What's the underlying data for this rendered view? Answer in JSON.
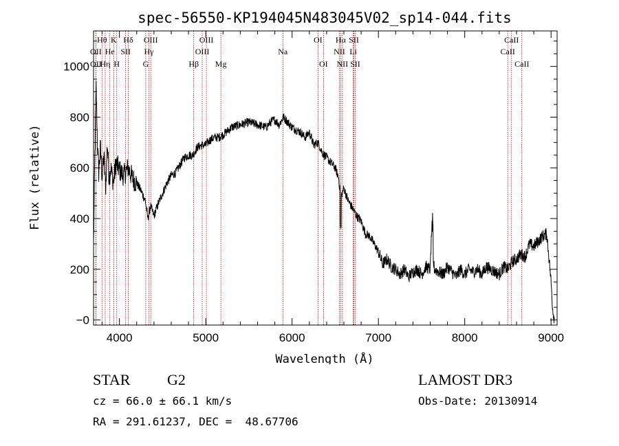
{
  "chart_data": {
    "type": "line",
    "title": "spec-56550-KP194045N483045V02_sp14-044.fits",
    "xlabel": "Wavelength (Å)",
    "ylabel": "Flux (relative)",
    "xlim": [
      3700,
      9070
    ],
    "ylim": [
      -20,
      1140
    ],
    "x_ticks": [
      4000,
      5000,
      6000,
      7000,
      8000,
      9000
    ],
    "y_ticks": [
      0,
      200,
      400,
      600,
      800,
      1000
    ],
    "y_tick_labels": [
      "−0",
      "200",
      "400",
      "600",
      "800",
      "1000"
    ],
    "series": [
      {
        "x": [
          3700,
          3715,
          3730,
          3745,
          3760,
          3780,
          3800,
          3820,
          3840,
          3860,
          3880,
          3900,
          3930,
          3960,
          4000,
          4050,
          4100,
          4150,
          4200,
          4250,
          4300,
          4330,
          4360,
          4400,
          4450,
          4500,
          4550,
          4600,
          4650,
          4700,
          4750,
          4800,
          4850,
          4900,
          4950,
          5000,
          5050,
          5100,
          5150,
          5200,
          5300,
          5400,
          5500,
          5600,
          5700,
          5750,
          5800,
          5850,
          5900,
          5950,
          6000,
          6050,
          6100,
          6150,
          6200,
          6250,
          6300,
          6350,
          6400,
          6450,
          6500,
          6540,
          6563,
          6580,
          6600,
          6650,
          6700,
          6750,
          6800,
          6850,
          6900,
          6950,
          7000,
          7050,
          7100,
          7150,
          7200,
          7250,
          7300,
          7350,
          7400,
          7450,
          7500,
          7550,
          7600,
          7620,
          7630,
          7640,
          7650,
          7700,
          7750,
          7800,
          7850,
          7900,
          7950,
          8000,
          8050,
          8100,
          8150,
          8200,
          8250,
          8300,
          8350,
          8400,
          8450,
          8500,
          8550,
          8600,
          8650,
          8700,
          8750,
          8800,
          8850,
          8900,
          8950,
          8980,
          9000,
          9020,
          9040
        ],
        "y": [
          300,
          650,
          920,
          700,
          580,
          680,
          560,
          650,
          520,
          700,
          560,
          600,
          540,
          620,
          590,
          570,
          600,
          560,
          540,
          510,
          470,
          400,
          450,
          410,
          460,
          500,
          540,
          570,
          580,
          610,
          640,
          650,
          650,
          680,
          690,
          690,
          710,
          720,
          720,
          730,
          760,
          770,
          780,
          770,
          760,
          780,
          790,
          770,
          800,
          780,
          760,
          750,
          740,
          720,
          740,
          690,
          700,
          660,
          640,
          620,
          600,
          560,
          480,
          500,
          520,
          470,
          440,
          410,
          390,
          340,
          330,
          300,
          270,
          220,
          240,
          210,
          200,
          180,
          200,
          170,
          190,
          200,
          180,
          210,
          200,
          380,
          240,
          220,
          200,
          190,
          180,
          210,
          190,
          170,
          200,
          180,
          200,
          190,
          200,
          180,
          210,
          200,
          190,
          180,
          210,
          200,
          230,
          240,
          260,
          250,
          300,
          290,
          310,
          330,
          340,
          230,
          150,
          40,
          0
        ]
      }
    ],
    "emission_lines": [
      {
        "label": "Hθ",
        "x": 3798,
        "row": 1
      },
      {
        "label": "OII",
        "x": 3727,
        "row": 2
      },
      {
        "label": "OII",
        "x": 3727,
        "row": 3
      },
      {
        "label": "He",
        "x": 3889,
        "row": 2
      },
      {
        "label": "Hη",
        "x": 3835,
        "row": 3
      },
      {
        "label": "K",
        "x": 3934,
        "row": 1
      },
      {
        "label": "H",
        "x": 3969,
        "row": 3
      },
      {
        "label": "SII",
        "x": 4072,
        "row": 2
      },
      {
        "label": "Hδ",
        "x": 4102,
        "row": 1
      },
      {
        "label": "OIII",
        "x": 4363,
        "row": 1
      },
      {
        "label": "Hγ",
        "x": 4341,
        "row": 2
      },
      {
        "label": "G",
        "x": 4305,
        "row": 3
      },
      {
        "label": "Hβ",
        "x": 4861,
        "row": 3
      },
      {
        "label": "OIII",
        "x": 4959,
        "row": 2
      },
      {
        "label": "OIII",
        "x": 5007,
        "row": 1
      },
      {
        "label": "Mg",
        "x": 5175,
        "row": 3
      },
      {
        "label": "Na",
        "x": 5893,
        "row": 2
      },
      {
        "label": "OI",
        "x": 6300,
        "row": 1
      },
      {
        "label": "OI",
        "x": 6364,
        "row": 3
      },
      {
        "label": "Hα",
        "x": 6563,
        "row": 1
      },
      {
        "label": "NII",
        "x": 6548,
        "row": 2
      },
      {
        "label": "NII",
        "x": 6583,
        "row": 3
      },
      {
        "label": "SII",
        "x": 6716,
        "row": 1
      },
      {
        "label": "Li",
        "x": 6708,
        "row": 2
      },
      {
        "label": "SII",
        "x": 6731,
        "row": 3
      },
      {
        "label": "CaII",
        "x": 8542,
        "row": 1
      },
      {
        "label": "CaII",
        "x": 8498,
        "row": 2
      },
      {
        "label": "CaII",
        "x": 8662,
        "row": 3
      }
    ]
  },
  "info": {
    "class_label": "STAR",
    "subclass": "G2",
    "survey": "LAMOST DR3",
    "redshift": "cz = 66.0 ± 66.1 km/s",
    "obs_date": "Obs-Date: 20130914",
    "coords": "RA = 291.61237, DEC =  48.67706"
  },
  "colors": {
    "line": "#000000",
    "marker": "#cc0000"
  }
}
